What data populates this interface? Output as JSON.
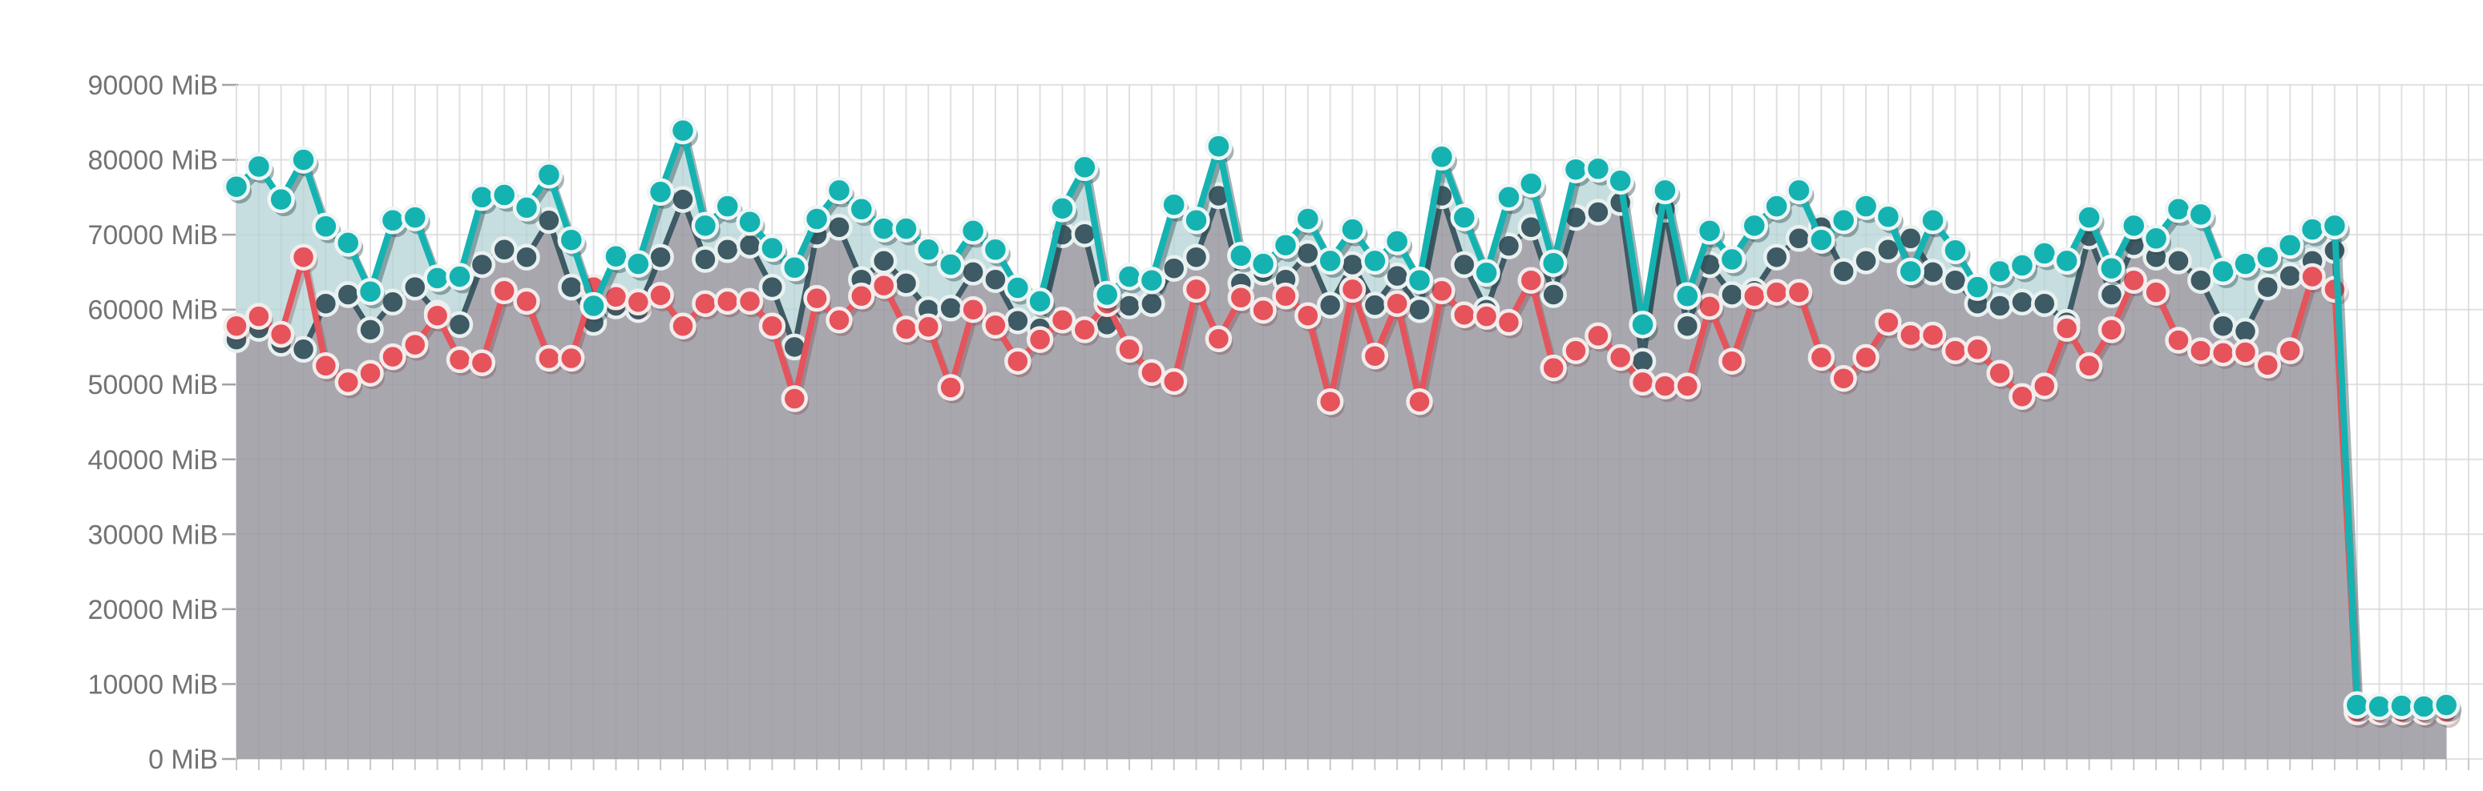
{
  "chart_data": {
    "type": "line",
    "title": "",
    "unit": "MiB",
    "grid": true,
    "legend_position": "none",
    "x_axis": {
      "tick_labels_visible": false,
      "points": 100
    },
    "y_axis": {
      "min": 0,
      "max": 90000,
      "step": 10000,
      "tick_labels": [
        "90000 MiB",
        "80000 MiB",
        "70000 MiB",
        "60000 MiB",
        "50000 MiB",
        "40000 MiB",
        "30000 MiB",
        "20000 MiB",
        "10000 MiB",
        "0 MiB"
      ]
    },
    "series": [
      {
        "name": "teal",
        "color": "#14b3b2",
        "area_color": "#c6dedf",
        "has_area": true,
        "values": [
          76400,
          79100,
          74700,
          80000,
          71100,
          68900,
          62400,
          71900,
          72300,
          64200,
          64400,
          75000,
          75300,
          73600,
          78000,
          69300,
          60500,
          67100,
          66100,
          75700,
          83900,
          71200,
          73800,
          71700,
          68200,
          65600,
          72100,
          75900,
          73400,
          70800,
          70800,
          68000,
          66000,
          70500,
          68000,
          62900,
          61100,
          73500,
          79000,
          62000,
          64400,
          63900,
          74000,
          71900,
          81800,
          67200,
          66100,
          68600,
          72100,
          66500,
          70700,
          66500,
          69100,
          63900,
          80400,
          72300,
          64900,
          75000,
          76800,
          66200,
          78700,
          78800,
          77200,
          58000,
          75900,
          61800,
          70500,
          66700,
          71200,
          73800,
          75900,
          69300,
          71900,
          73800,
          72400,
          65100,
          71900,
          67900,
          63000,
          65100,
          65900,
          67500,
          66500,
          72300,
          65500,
          71200,
          69500,
          73400,
          72700,
          65100,
          66100,
          67000,
          68600,
          70700,
          71200,
          7200,
          7000,
          7100,
          7000,
          7200
        ]
      },
      {
        "name": "dark-slate",
        "color": "#3e5a64",
        "area_color": "#a9a7ae",
        "has_area": true,
        "values": [
          56000,
          57500,
          55500,
          54700,
          60800,
          62000,
          57300,
          61000,
          63000,
          59500,
          58000,
          66000,
          68000,
          67000,
          71900,
          63000,
          58300,
          60500,
          60000,
          67000,
          74700,
          66700,
          68000,
          68600,
          63000,
          55000,
          70000,
          71000,
          64000,
          66500,
          63500,
          60000,
          60200,
          65000,
          64000,
          58500,
          57500,
          70000,
          70100,
          58000,
          60500,
          60800,
          65500,
          67000,
          75200,
          63500,
          65000,
          64000,
          67500,
          60600,
          66000,
          60600,
          64500,
          60000,
          75200,
          66000,
          60000,
          68500,
          71000,
          62000,
          72300,
          73000,
          74300,
          53100,
          73400,
          57800,
          66000,
          62000,
          62500,
          67000,
          69500,
          71000,
          65100,
          66500,
          68000,
          69500,
          65000,
          63900,
          60800,
          60500,
          61000,
          60800,
          58300,
          69800,
          62000,
          68600,
          67000,
          66500,
          63900,
          57800,
          57100,
          63000,
          64500,
          66500,
          67900,
          6800,
          6800,
          6800,
          6800,
          6800
        ]
      },
      {
        "name": "red",
        "color": "#e6535b",
        "area_color": null,
        "has_area": false,
        "values": [
          57800,
          59100,
          56700,
          67000,
          52500,
          50300,
          51500,
          53700,
          55300,
          59200,
          53300,
          52900,
          62500,
          61100,
          53500,
          53500,
          63000,
          61700,
          61000,
          61900,
          57800,
          60800,
          61100,
          61100,
          57800,
          48100,
          61500,
          58600,
          61800,
          63200,
          57400,
          57700,
          49600,
          60000,
          57900,
          53100,
          56000,
          58600,
          57300,
          60800,
          54700,
          51600,
          50400,
          62700,
          56100,
          61600,
          59900,
          61800,
          59200,
          47700,
          62700,
          53800,
          60800,
          47700,
          62500,
          59300,
          59100,
          58300,
          63900,
          52200,
          54500,
          56500,
          53600,
          50300,
          49800,
          49800,
          60400,
          53100,
          61800,
          62300,
          62300,
          53600,
          50800,
          53600,
          58300,
          56600,
          56600,
          54500,
          54700,
          51500,
          48400,
          49800,
          57500,
          52500,
          57300,
          63900,
          62300,
          55900,
          54500,
          54200,
          54300,
          52600,
          54500,
          64400,
          62700,
          6300,
          6300,
          6300,
          6300,
          6300
        ]
      }
    ],
    "style": {
      "background": "#ffffff",
      "gridline_color": "#e8e8e8",
      "axis_tick_color": "#a3a3a3",
      "bottom_tick_color": "#c8c8c8",
      "label_color": "#737373",
      "marker_halo_color": "#eef6f5",
      "teal_shadow": "rgba(45,75,82,0.42)",
      "red_shadow": "rgba(115,60,63,0.30)"
    }
  }
}
